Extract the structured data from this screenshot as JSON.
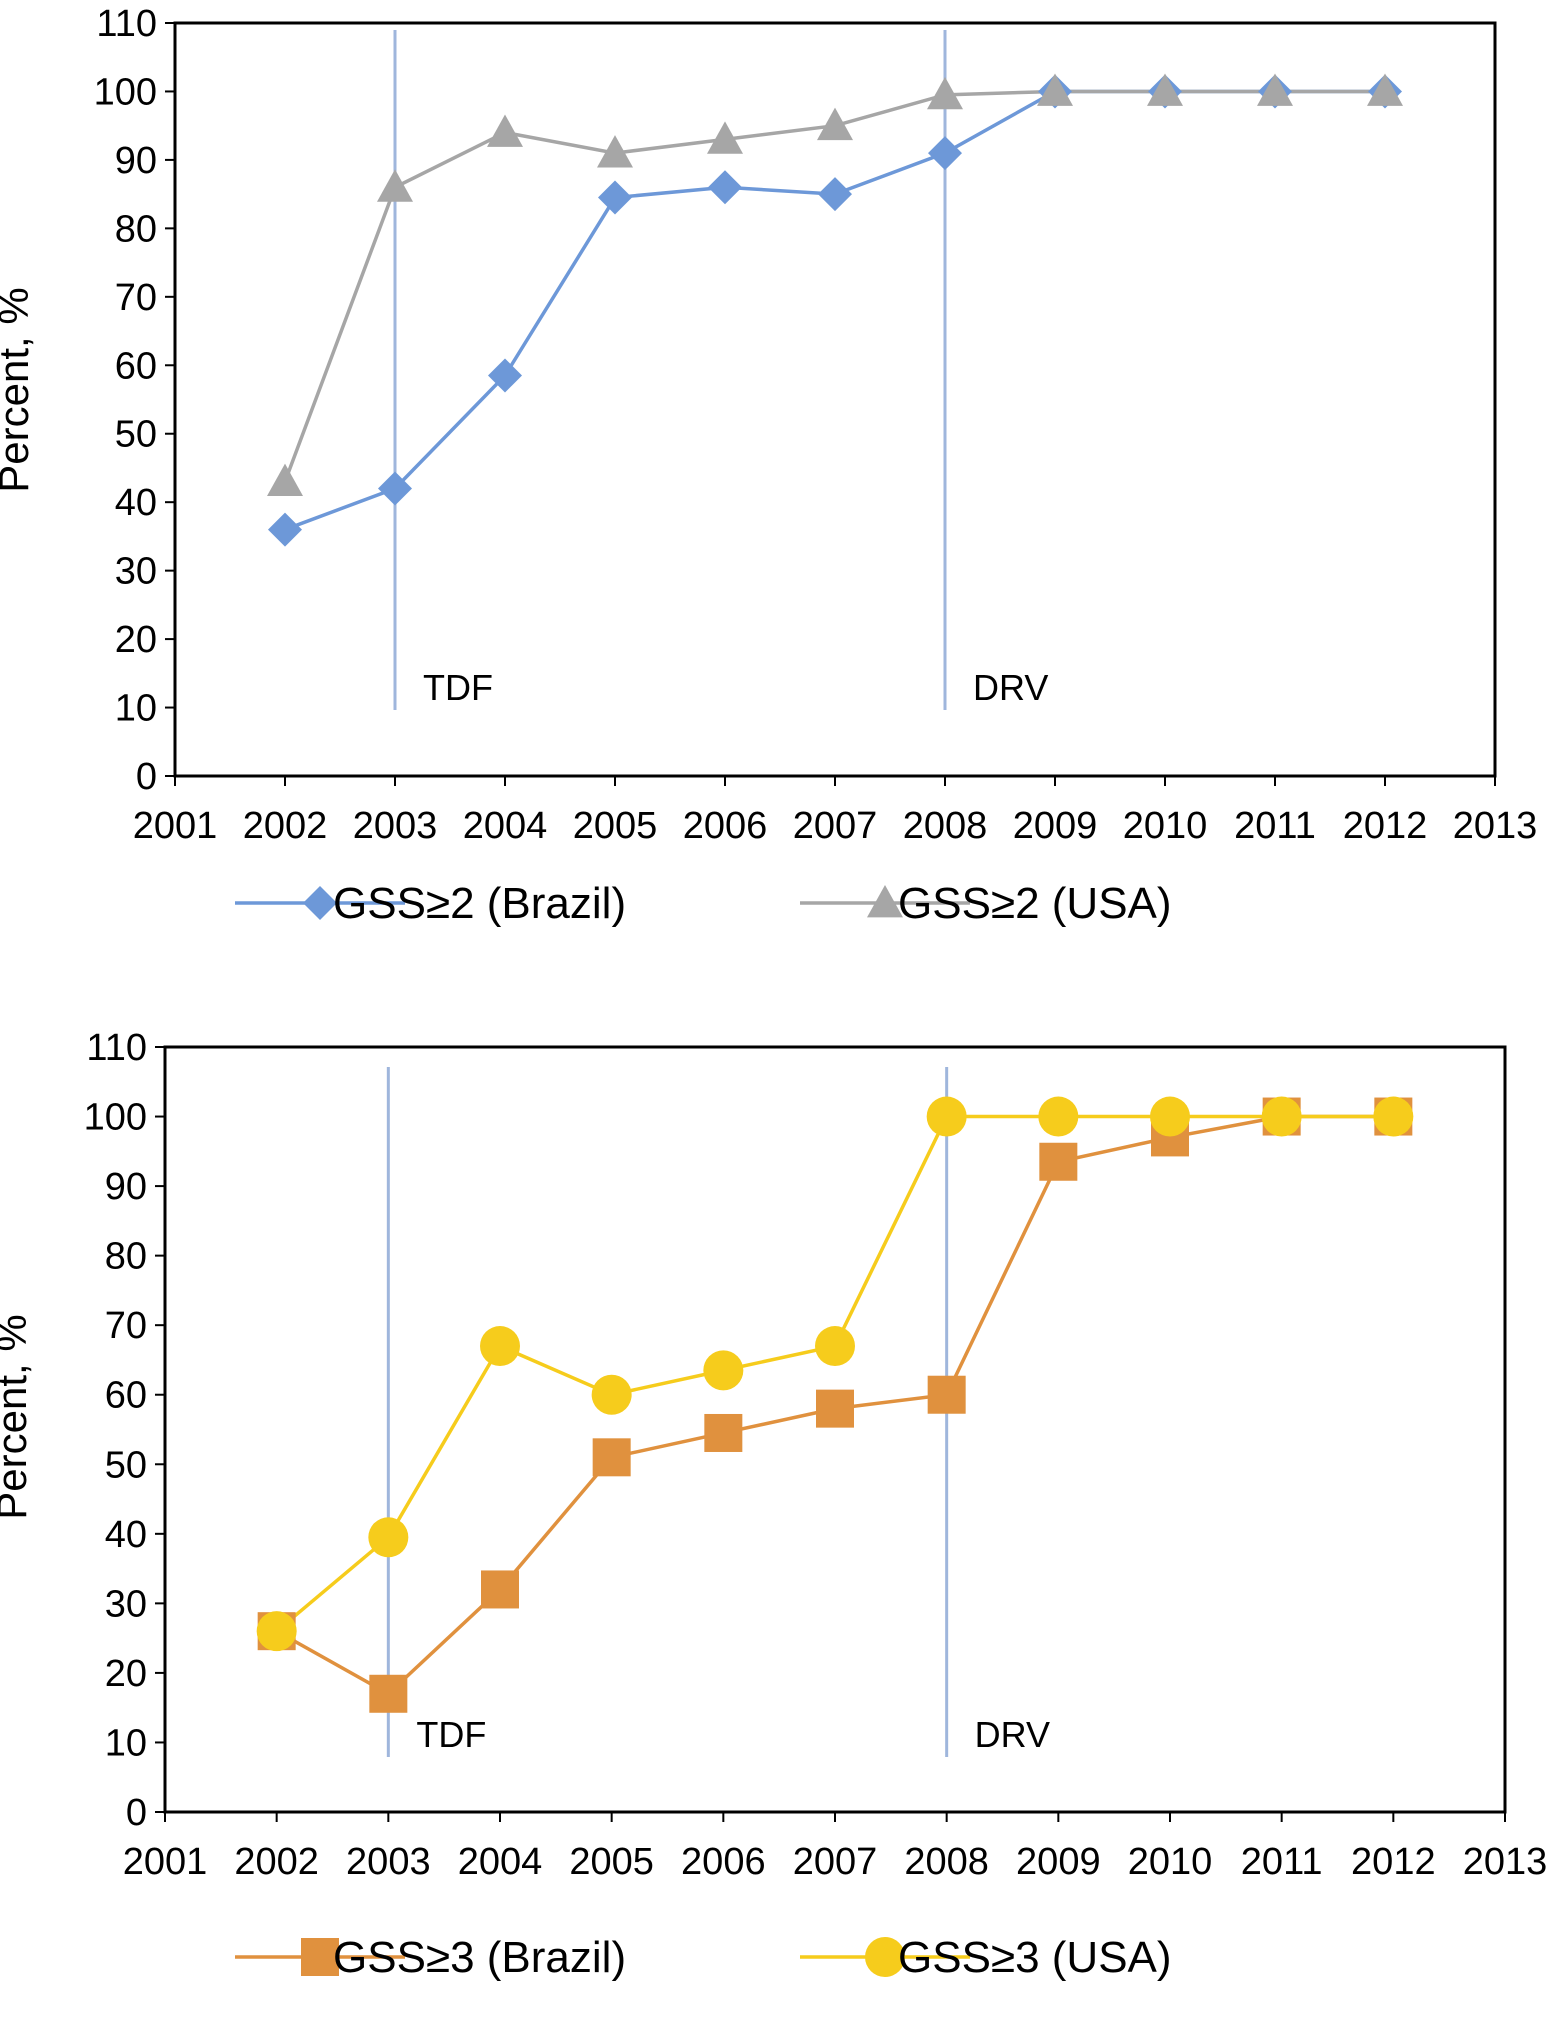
{
  "chart_data": [
    {
      "type": "line",
      "xlabel": "",
      "ylabel": "Percent, %",
      "xlim": [
        2001,
        2013
      ],
      "ylim": [
        0,
        110
      ],
      "x_ticks": [
        "2001",
        "2002",
        "2003",
        "2004",
        "2005",
        "2006",
        "2007",
        "2008",
        "2009",
        "2010",
        "2011",
        "2012",
        "2013"
      ],
      "y_ticks": [
        "0",
        "10",
        "20",
        "30",
        "40",
        "50",
        "60",
        "70",
        "80",
        "90",
        "100",
        "110"
      ],
      "grid": false,
      "legend_position": "bottom",
      "vertical_markers": [
        {
          "x": 2003,
          "label": "TDF"
        },
        {
          "x": 2008,
          "label": "DRV"
        }
      ],
      "series": [
        {
          "name": "GSS≥2 (Brazil)",
          "marker": "diamond",
          "color": "#6d98d8",
          "x": [
            2002,
            2003,
            2004,
            2005,
            2006,
            2007,
            2008,
            2009,
            2010,
            2011,
            2012
          ],
          "values": [
            36,
            42,
            58.5,
            84.5,
            86,
            85,
            91,
            100,
            100,
            100,
            100
          ]
        },
        {
          "name": "GSS≥2 (USA)",
          "marker": "triangle",
          "color": "#a6a6a6",
          "x": [
            2002,
            2003,
            2004,
            2005,
            2006,
            2007,
            2008,
            2009,
            2010,
            2011,
            2012
          ],
          "values": [
            43,
            86,
            94,
            91,
            93,
            95,
            99.5,
            100,
            100,
            100,
            100
          ]
        }
      ]
    },
    {
      "type": "line",
      "xlabel": "",
      "ylabel": "Percent, %",
      "xlim": [
        2001,
        2013
      ],
      "ylim": [
        0,
        110
      ],
      "x_ticks": [
        "2001",
        "2002",
        "2003",
        "2004",
        "2005",
        "2006",
        "2007",
        "2008",
        "2009",
        "2010",
        "2011",
        "2012",
        "2013"
      ],
      "y_ticks": [
        "0",
        "10",
        "20",
        "30",
        "40",
        "50",
        "60",
        "70",
        "80",
        "90",
        "100",
        "110"
      ],
      "grid": false,
      "legend_position": "bottom",
      "vertical_markers": [
        {
          "x": 2003,
          "label": "TDF"
        },
        {
          "x": 2008,
          "label": "DRV"
        }
      ],
      "series": [
        {
          "name": "GSS≥3 (Brazil)",
          "marker": "square",
          "color": "#e0913e",
          "x": [
            2002,
            2003,
            2004,
            2005,
            2006,
            2007,
            2008,
            2009,
            2010,
            2011,
            2012
          ],
          "values": [
            26,
            17,
            32,
            51,
            54.5,
            58,
            60,
            93.5,
            97,
            100,
            100
          ]
        },
        {
          "name": "GSS≥3 (USA)",
          "marker": "circle",
          "color": "#f6cc1c",
          "x": [
            2002,
            2003,
            2004,
            2005,
            2006,
            2007,
            2008,
            2009,
            2010,
            2011,
            2012
          ],
          "values": [
            26,
            39.5,
            67,
            60,
            63.5,
            67,
            100,
            100,
            100,
            100,
            100
          ]
        }
      ]
    }
  ],
  "colors": {
    "axis": "#000000",
    "marker_line": "#9fb6dc"
  }
}
